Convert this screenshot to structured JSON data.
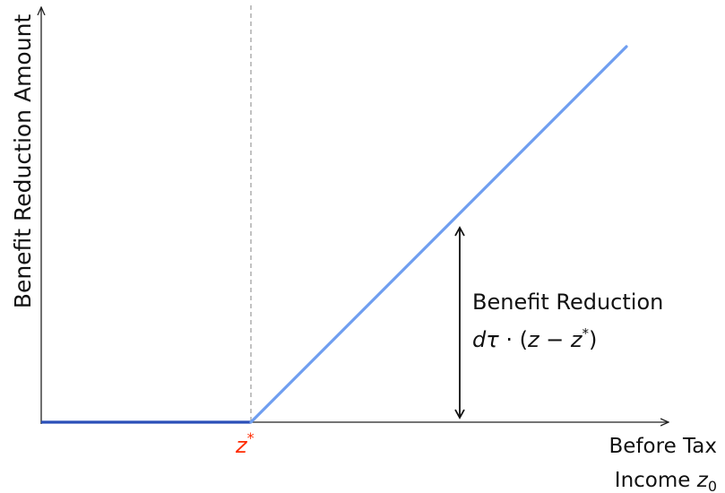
{
  "axes": {
    "y_label": "Benefit Reduction Amount",
    "x_label_line1": "Before Tax",
    "x_label_line2_text": "Income ",
    "x_label_var": "z",
    "x_label_sub": "0"
  },
  "threshold": {
    "symbol": "z",
    "superscript": "*",
    "color": "#ff2a00"
  },
  "annotation": {
    "line1": "Benefit Reduction",
    "line2_d": "d",
    "line2_tau": "τ",
    "line2_dot": " · (",
    "line2_z": "z",
    "line2_minus": " − ",
    "line2_z2": "z",
    "line2_star": "*",
    "line2_close": ")"
  },
  "colors": {
    "flat_segment": "#2b4fb8",
    "rising_segment": "#6f9ef0",
    "axis": "#222222",
    "dashed": "#999999"
  }
}
